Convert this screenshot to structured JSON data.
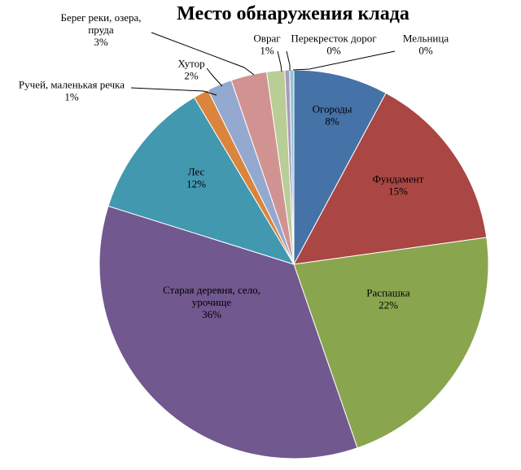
{
  "chart_data": {
    "type": "pie",
    "title": "Место обнаружения клада",
    "slices": [
      {
        "label": "Огороды",
        "value": 8,
        "display": "8%",
        "color": "#4572A7"
      },
      {
        "label": "Фундамент",
        "value": 15,
        "display": "15%",
        "color": "#AA4643"
      },
      {
        "label": "Распашка",
        "value": 22,
        "display": "22%",
        "color": "#89A54E"
      },
      {
        "label": "Старая деревня, село, урочище",
        "value": 36,
        "display": "36%",
        "color": "#71588F"
      },
      {
        "label": "Лес",
        "value": 12,
        "display": "12%",
        "color": "#4198AF"
      },
      {
        "label": "Ручей, маленькая речка",
        "value": 1,
        "display": "1%",
        "color": "#DB843D"
      },
      {
        "label": "Хутор",
        "value": 2,
        "display": "2%",
        "color": "#93A9CF"
      },
      {
        "label": "Берег реки, озера, пруда",
        "value": 3,
        "display": "3%",
        "color": "#D19392"
      },
      {
        "label": "Овраг",
        "value": 1,
        "display": "1%",
        "color": "#B9CD96"
      },
      {
        "label": "Перекресток дорог",
        "value": 0,
        "display": "0%",
        "color": "#A99BBD"
      },
      {
        "label": "Мельница",
        "value": 0,
        "display": "0%",
        "color": "#92C3D4"
      }
    ]
  }
}
